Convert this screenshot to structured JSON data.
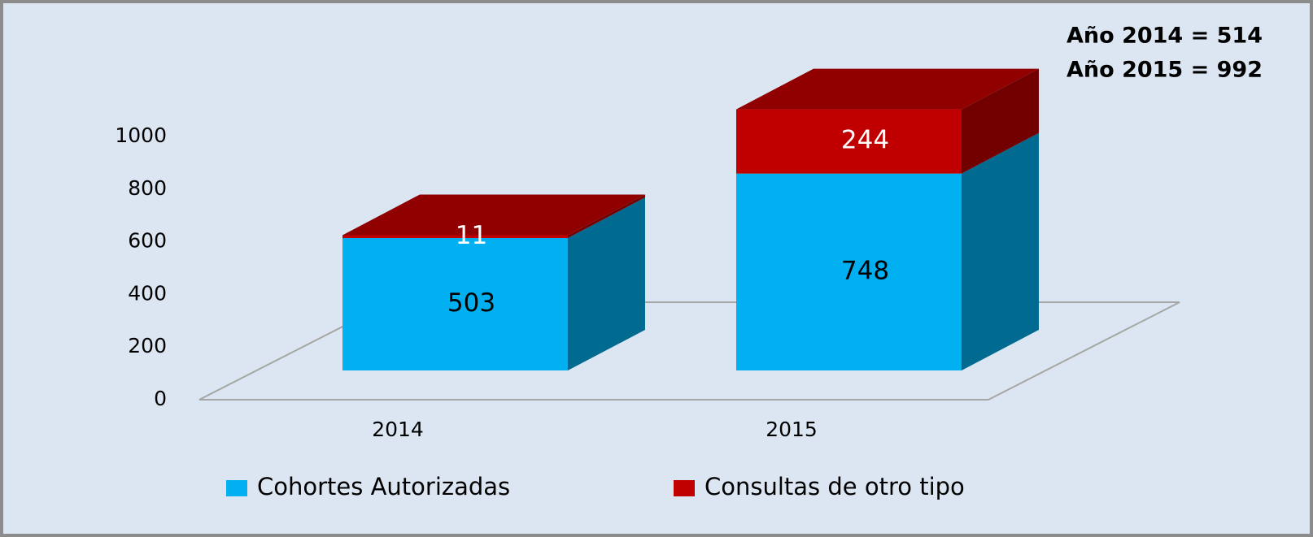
{
  "chart_data": {
    "type": "bar3d_stacked",
    "annotations": [
      "Año 2014 = 514",
      "Año 2015 = 992"
    ],
    "categories": [
      "2014",
      "2015"
    ],
    "series": [
      {
        "name": "Cohortes Autorizadas",
        "color": "#00b0f0",
        "values": [
          503,
          748
        ]
      },
      {
        "name": "Consultas de otro tipo",
        "color": "#c00000",
        "values": [
          11,
          244
        ]
      }
    ],
    "ylim": [
      0,
      1000
    ],
    "yticks": [
      0,
      200,
      400,
      600,
      800,
      1000
    ],
    "grid": false
  }
}
